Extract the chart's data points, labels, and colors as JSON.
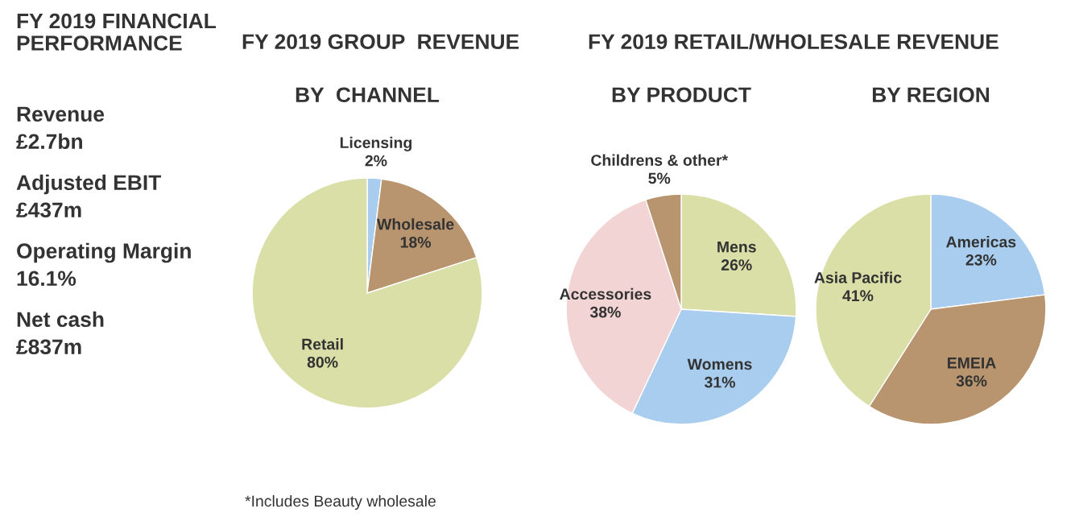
{
  "chart_data": [
    {
      "type": "other",
      "title": "FY 2019 FINANCIAL\nPERFORMANCE",
      "annotations": [
        "Revenue",
        "£2.7bn",
        "Adjusted EBIT",
        "£437m",
        "Operating Margin",
        "16.1%",
        "Net cash",
        "£837m"
      ]
    },
    {
      "type": "pie",
      "title": "FY 2019 GROUP  REVENUE",
      "subtitle": "BY  CHANNEL",
      "categories": [
        "Licensing",
        "Wholesale",
        "Retail"
      ],
      "values": [
        2,
        18,
        80
      ],
      "colors": [
        "#a9cdef",
        "#b8956f",
        "#d9dfa6"
      ],
      "value_labels": [
        "2%",
        "18%",
        "80%"
      ],
      "annotations": [
        "*Includes Beauty wholesale"
      ]
    },
    {
      "type": "pie",
      "title": "FY 2019 RETAIL/WHOLESALE REVENUE",
      "subtitle": "BY PRODUCT",
      "categories": [
        "Mens",
        "Womens",
        "Accessories",
        "Childrens & other*"
      ],
      "values": [
        26,
        31,
        38,
        5
      ],
      "colors": [
        "#d9dfa6",
        "#a9cdef",
        "#f3d4d4",
        "#b8956f"
      ],
      "value_labels": [
        "26%",
        "31%",
        "38%",
        "5%"
      ]
    },
    {
      "type": "pie",
      "subtitle": "BY REGION",
      "categories": [
        "Americas",
        "EMEIA",
        "Asia Pacific"
      ],
      "values": [
        23,
        36,
        41
      ],
      "colors": [
        "#a9cdef",
        "#b8956f",
        "#d9dfa6"
      ],
      "value_labels": [
        "23%",
        "36%",
        "41%"
      ]
    }
  ]
}
